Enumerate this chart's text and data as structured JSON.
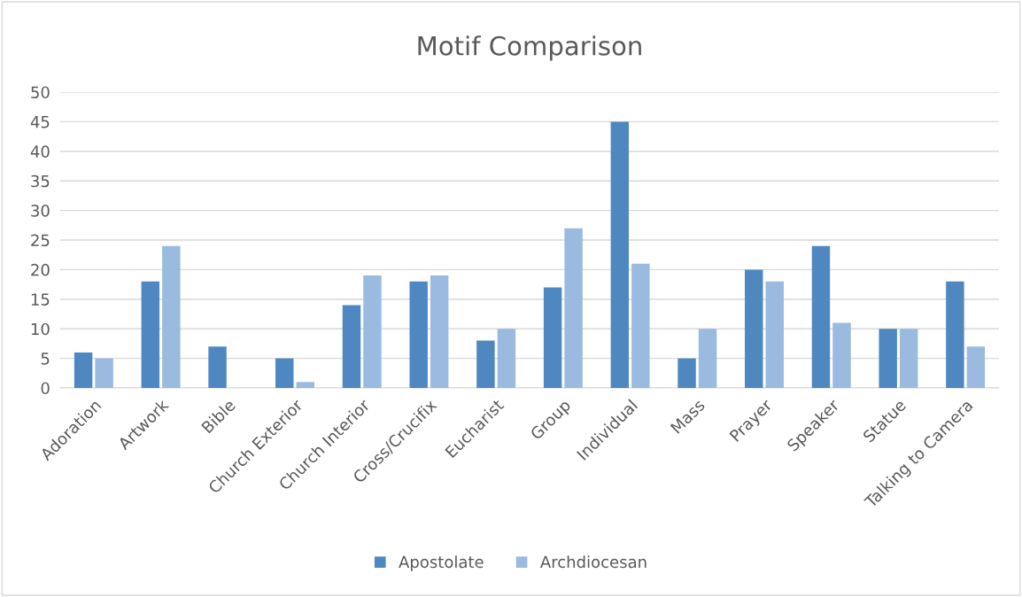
{
  "chart_data": {
    "type": "bar",
    "title": "Motif Comparison",
    "categories": [
      "Adoration",
      "Artwork",
      "Bible",
      "Church Exterior",
      "Church Interior",
      "Cross/Crucifix",
      "Eucharist",
      "Group",
      "Individual",
      "Mass",
      "Prayer",
      "Speaker",
      "Statue",
      "Talking to Camera"
    ],
    "series": [
      {
        "name": "Apostolate",
        "color": "#4f88c0",
        "values": [
          6,
          18,
          7,
          5,
          14,
          18,
          8,
          17,
          45,
          5,
          20,
          24,
          10,
          18
        ]
      },
      {
        "name": "Archdiocesan",
        "color": "#9abae0",
        "values": [
          5,
          24,
          0,
          1,
          19,
          19,
          10,
          27,
          21,
          10,
          18,
          11,
          10,
          7
        ]
      }
    ],
    "ylim": [
      0,
      50
    ],
    "yticks": [
      0,
      5,
      10,
      15,
      20,
      25,
      30,
      35,
      40,
      45,
      50
    ],
    "grid": "y",
    "legend": "bottom"
  }
}
